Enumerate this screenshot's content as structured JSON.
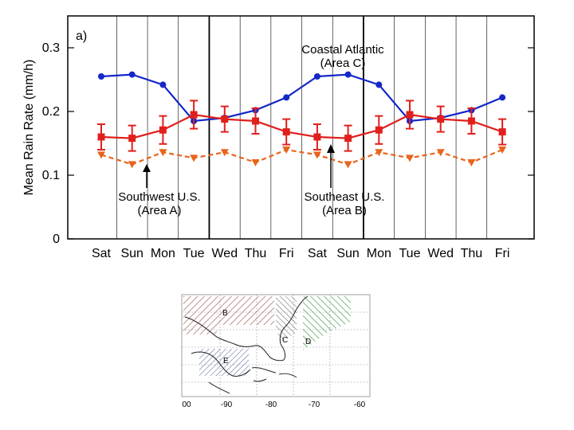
{
  "chart_data": {
    "type": "line",
    "panel_label": "a)",
    "ylabel": "Mean Rain Rate  (mm/h)",
    "xlabel": "",
    "ylim": [
      0,
      0.35
    ],
    "y_ticks": [
      0,
      0.1,
      0.2,
      0.3
    ],
    "y_tick_labels": [
      "0",
      "0.1",
      "0.2",
      "0.3"
    ],
    "categories": [
      "Sat",
      "Sun",
      "Mon",
      "Tue",
      "Wed",
      "Thu",
      "Fri",
      "Sat",
      "Sun",
      "Mon",
      "Tue",
      "Wed",
      "Thu",
      "Fri"
    ],
    "grid": "vertical",
    "series": [
      {
        "color": "#1428c8",
        "line_style": "solid",
        "marker": "circle",
        "values": [
          0.255,
          0.258,
          0.242,
          0.185,
          0.19,
          0.202,
          0.222,
          0.255,
          0.258,
          0.242,
          0.185,
          0.19,
          0.202,
          0.222
        ]
      },
      {
        "color": "#e0201c",
        "line_style": "solid",
        "marker": "square",
        "values": [
          0.16,
          0.158,
          0.171,
          0.195,
          0.188,
          0.185,
          0.168,
          0.16,
          0.158,
          0.171,
          0.195,
          0.188,
          0.185,
          0.168
        ],
        "error": [
          0.02,
          0.02,
          0.022,
          0.022,
          0.02,
          0.02,
          0.02,
          0.02,
          0.02,
          0.022,
          0.022,
          0.02,
          0.02,
          0.02
        ]
      },
      {
        "color": "#e8641c",
        "line_style": "dashed",
        "marker": "triangle-down",
        "values": [
          0.132,
          0.117,
          0.136,
          0.127,
          0.136,
          0.12,
          0.14,
          0.132,
          0.117,
          0.136,
          0.127,
          0.136,
          0.12,
          0.14
        ]
      }
    ],
    "annotations": [
      {
        "lines": [
          "Coastal Atlantic",
          "(Area C)"
        ]
      },
      {
        "lines": [
          "Southwest U.S.",
          "(Area A)"
        ]
      },
      {
        "lines": [
          "Southeast U.S.",
          "(Area B)"
        ]
      }
    ]
  },
  "map": {
    "area_labels": [
      "B",
      "C",
      "D",
      "E"
    ],
    "lon_labels": [
      "00",
      "-90",
      "-80",
      "-70",
      "-60"
    ]
  }
}
